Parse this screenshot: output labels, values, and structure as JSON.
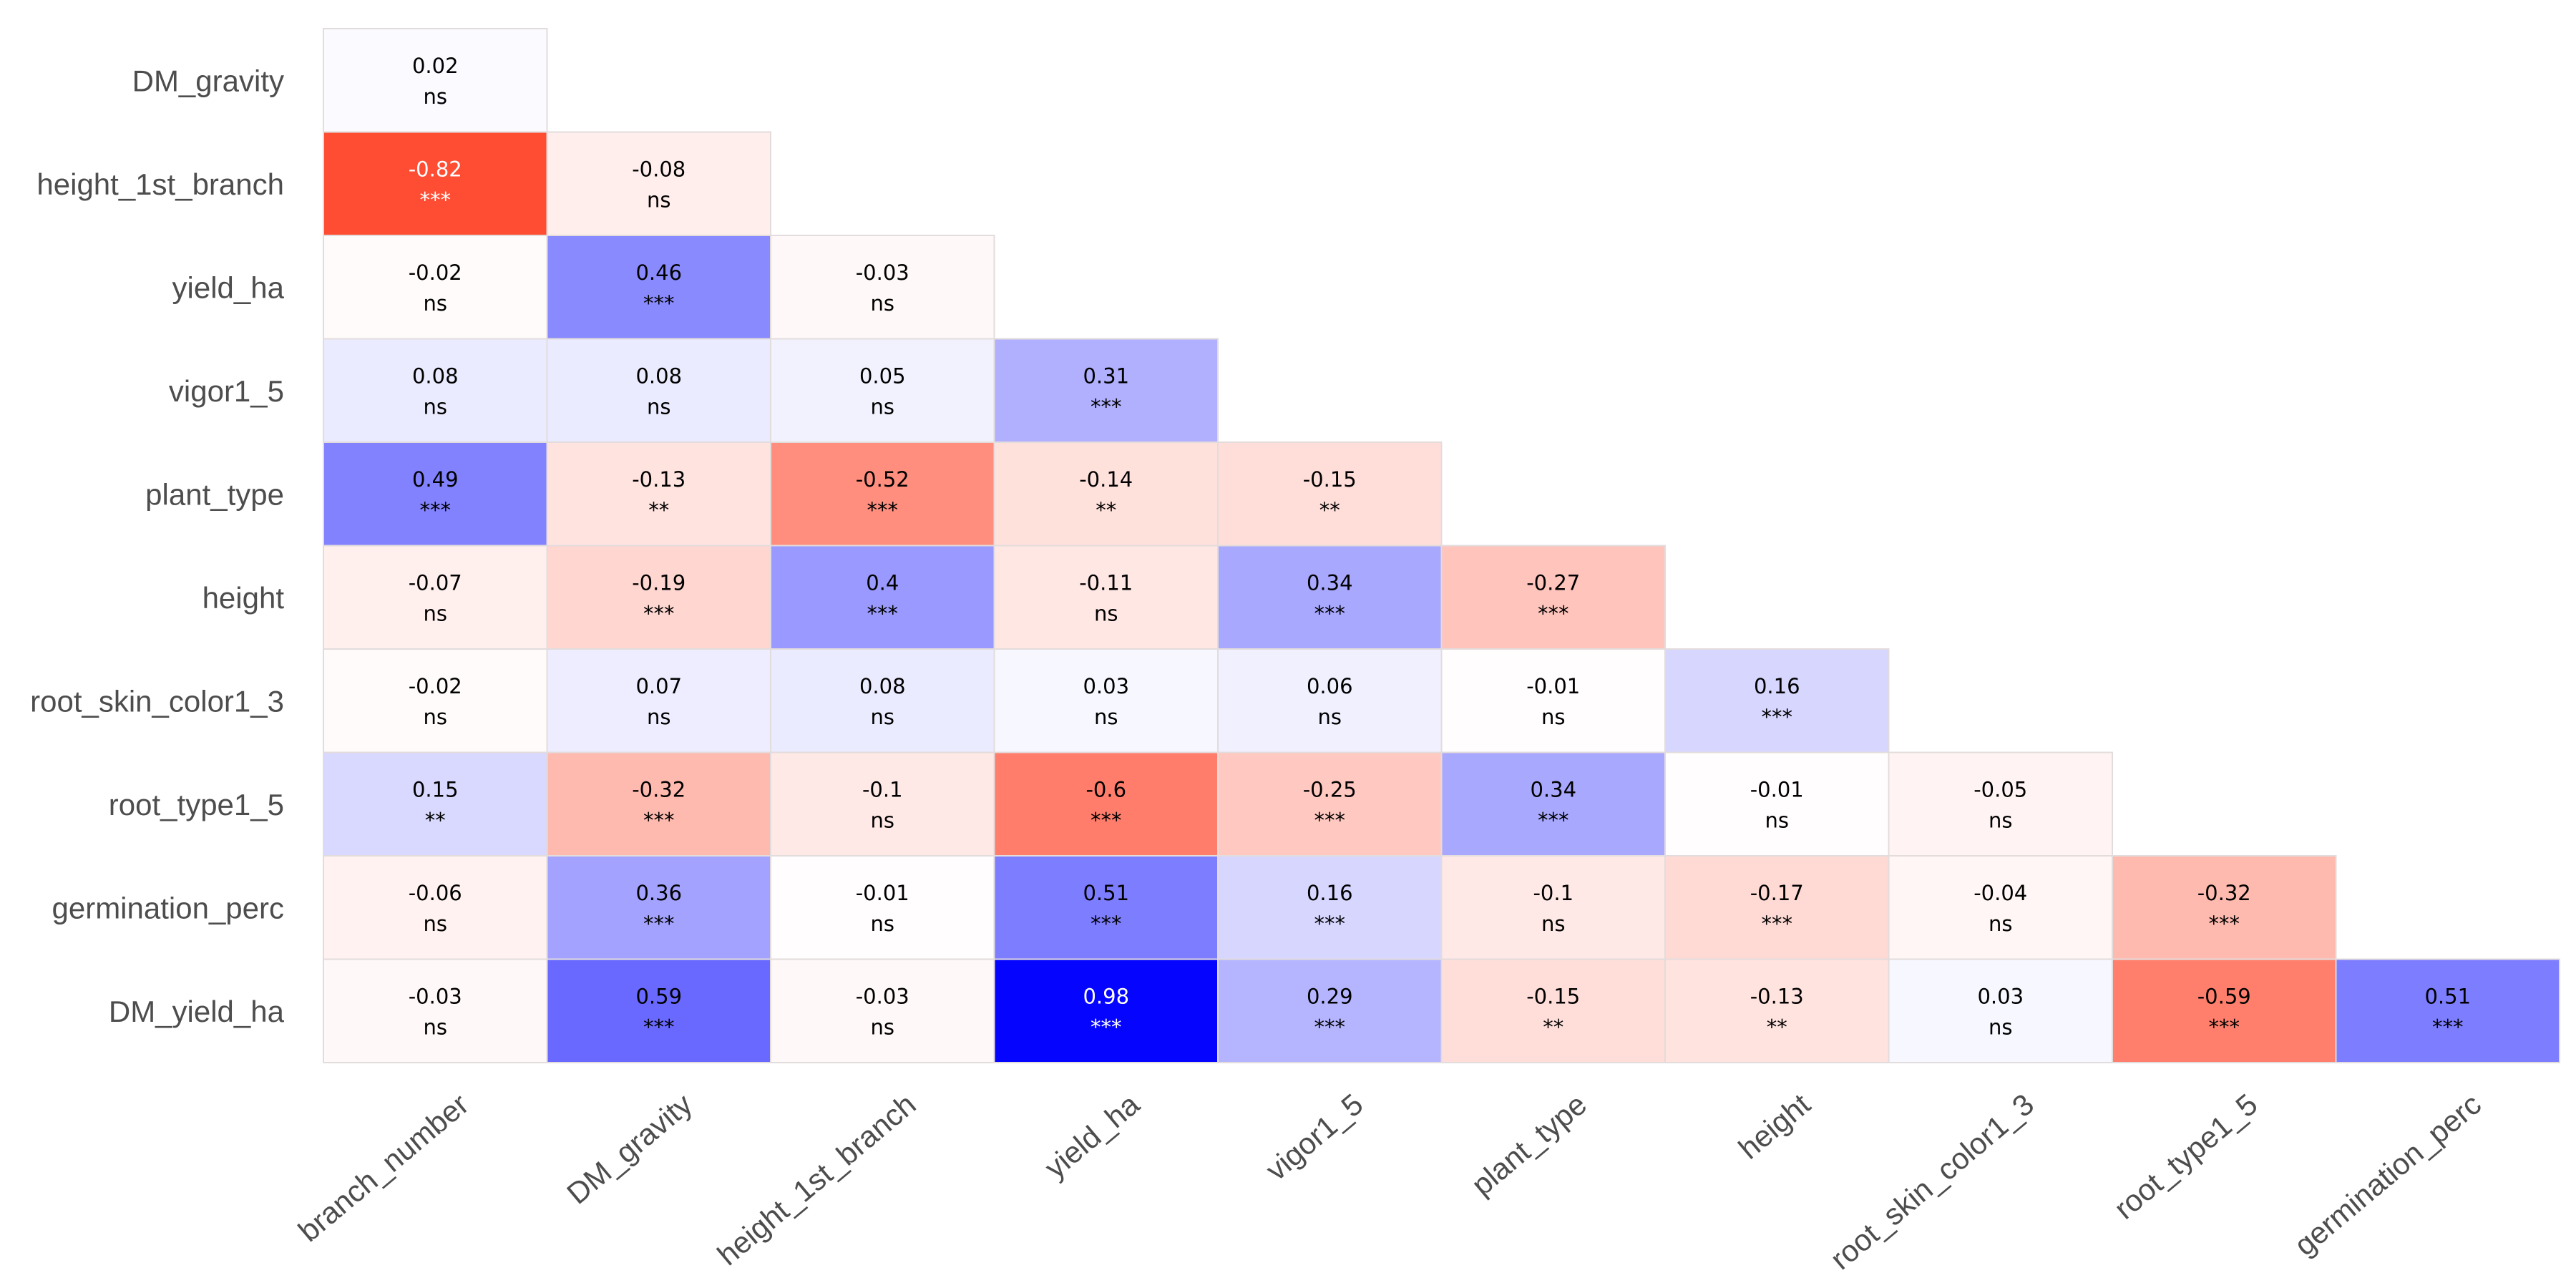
{
  "chart_data": {
    "type": "heatmap",
    "variant": "lower-triangle correlation matrix",
    "title": "",
    "xlabel": "",
    "ylabel": "",
    "color_scale": {
      "negative": "#ff4d33",
      "zero": "#ffffff",
      "positive": "#0000ff"
    },
    "row_labels": [
      "DM_gravity",
      "height_1st_branch",
      "yield_ha",
      "vigor1_5",
      "plant_type",
      "height",
      "root_skin_color1_3",
      "root_type1_5",
      "germination_perc",
      "DM_yield_ha"
    ],
    "col_labels": [
      "branch_number",
      "DM_gravity",
      "height_1st_branch",
      "yield_ha",
      "vigor1_5",
      "plant_type",
      "height",
      "root_skin_color1_3",
      "root_type1_5",
      "germination_perc"
    ],
    "values": [
      [
        0.02
      ],
      [
        -0.82,
        -0.08
      ],
      [
        -0.02,
        0.46,
        -0.03
      ],
      [
        0.08,
        0.08,
        0.05,
        0.31
      ],
      [
        0.49,
        -0.13,
        -0.52,
        -0.14,
        -0.15
      ],
      [
        -0.07,
        -0.19,
        0.4,
        -0.11,
        0.34,
        -0.27
      ],
      [
        -0.02,
        0.07,
        0.08,
        0.03,
        0.06,
        -0.01,
        0.16
      ],
      [
        0.15,
        -0.32,
        -0.1,
        -0.6,
        -0.25,
        0.34,
        -0.01,
        -0.05
      ],
      [
        -0.06,
        0.36,
        -0.01,
        0.51,
        0.16,
        -0.1,
        -0.17,
        -0.04,
        -0.32
      ],
      [
        -0.03,
        0.59,
        -0.03,
        0.98,
        0.29,
        -0.15,
        -0.13,
        0.03,
        -0.59,
        0.51
      ]
    ],
    "significance": [
      [
        "ns"
      ],
      [
        "***",
        "ns"
      ],
      [
        "ns",
        "***",
        "ns"
      ],
      [
        "ns",
        "ns",
        "ns",
        "***"
      ],
      [
        "***",
        "**",
        "***",
        "**",
        "**"
      ],
      [
        "ns",
        "***",
        "***",
        "ns",
        "***",
        "***"
      ],
      [
        "ns",
        "ns",
        "ns",
        "ns",
        "ns",
        "ns",
        "***"
      ],
      [
        "**",
        "***",
        "ns",
        "***",
        "***",
        "***",
        "ns",
        "ns"
      ],
      [
        "ns",
        "***",
        "ns",
        "***",
        "***",
        "ns",
        "***",
        "ns",
        "***"
      ],
      [
        "ns",
        "***",
        "ns",
        "***",
        "***",
        "**",
        "**",
        "ns",
        "***",
        "***"
      ]
    ]
  }
}
